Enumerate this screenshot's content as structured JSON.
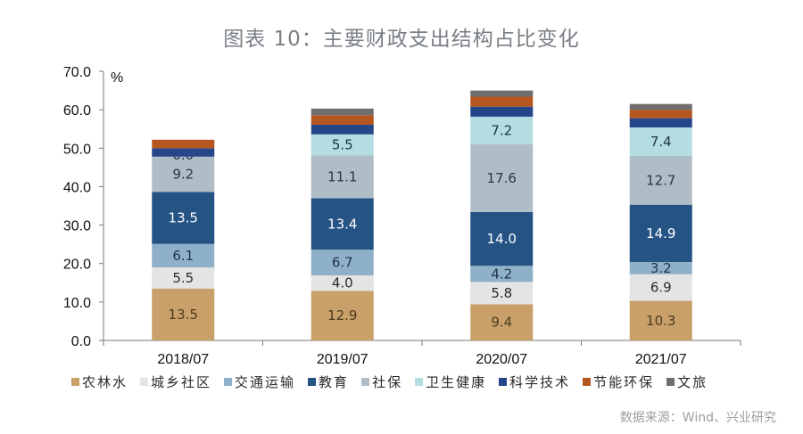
{
  "title": "图表 10：主要财政支出结构占比变化",
  "source": "数据来源：Wind、兴业研究",
  "chart_data": {
    "type": "bar",
    "stacked": true,
    "title": "图表 10：主要财政支出结构占比变化",
    "xlabel": "",
    "ylabel": "%",
    "ylim": [
      0,
      70
    ],
    "yticks": [
      "0.0",
      "10.0",
      "20.0",
      "30.0",
      "40.0",
      "50.0",
      "60.0",
      "70.0"
    ],
    "grid": false,
    "legend_position": "bottom",
    "categories": [
      "2018/07",
      "2019/07",
      "2020/07",
      "2021/07"
    ],
    "series": [
      {
        "name": "农林水",
        "color": "#c9a069",
        "label_color": "#4a3a1f",
        "values": [
          13.5,
          12.9,
          9.4,
          10.3
        ],
        "labeled": [
          true,
          true,
          true,
          true
        ]
      },
      {
        "name": "城乡社区",
        "color": "#e4e4e4",
        "label_color": "#2b2b2b",
        "values": [
          5.5,
          4.0,
          5.8,
          6.9
        ],
        "labeled": [
          true,
          true,
          true,
          true
        ]
      },
      {
        "name": "交通运输",
        "color": "#8fb0c9",
        "label_color": "#1f3347",
        "values": [
          6.1,
          6.7,
          4.2,
          3.2
        ],
        "labeled": [
          true,
          true,
          true,
          true
        ]
      },
      {
        "name": "教育",
        "color": "#245384",
        "label_color": "#ffffff",
        "values": [
          13.5,
          13.4,
          14.0,
          14.9
        ],
        "labeled": [
          true,
          true,
          true,
          true
        ]
      },
      {
        "name": "社保",
        "color": "#b1bdc6",
        "label_color": "#2b3540",
        "values": [
          9.2,
          11.1,
          17.6,
          12.7
        ],
        "labeled": [
          true,
          true,
          true,
          true
        ]
      },
      {
        "name": "卫生健康",
        "color": "#b3dde0",
        "label_color": "#1f3347",
        "values": [
          0.0,
          5.5,
          7.2,
          7.4
        ],
        "labeled": [
          true,
          true,
          true,
          true
        ]
      },
      {
        "name": "科学技术",
        "color": "#26468a",
        "label_color": "#ffffff",
        "values": [
          2.2,
          2.5,
          2.6,
          2.4
        ],
        "labeled": [
          false,
          false,
          false,
          false
        ]
      },
      {
        "name": "节能环保",
        "color": "#b5561f",
        "label_color": "#ffffff",
        "values": [
          2.2,
          2.5,
          2.6,
          2.2
        ],
        "labeled": [
          false,
          false,
          false,
          false
        ]
      },
      {
        "name": "文旅",
        "color": "#6e6e6e",
        "label_color": "#ffffff",
        "values": [
          0.0,
          1.7,
          1.6,
          1.5
        ],
        "labeled": [
          false,
          false,
          false,
          false
        ]
      }
    ]
  }
}
